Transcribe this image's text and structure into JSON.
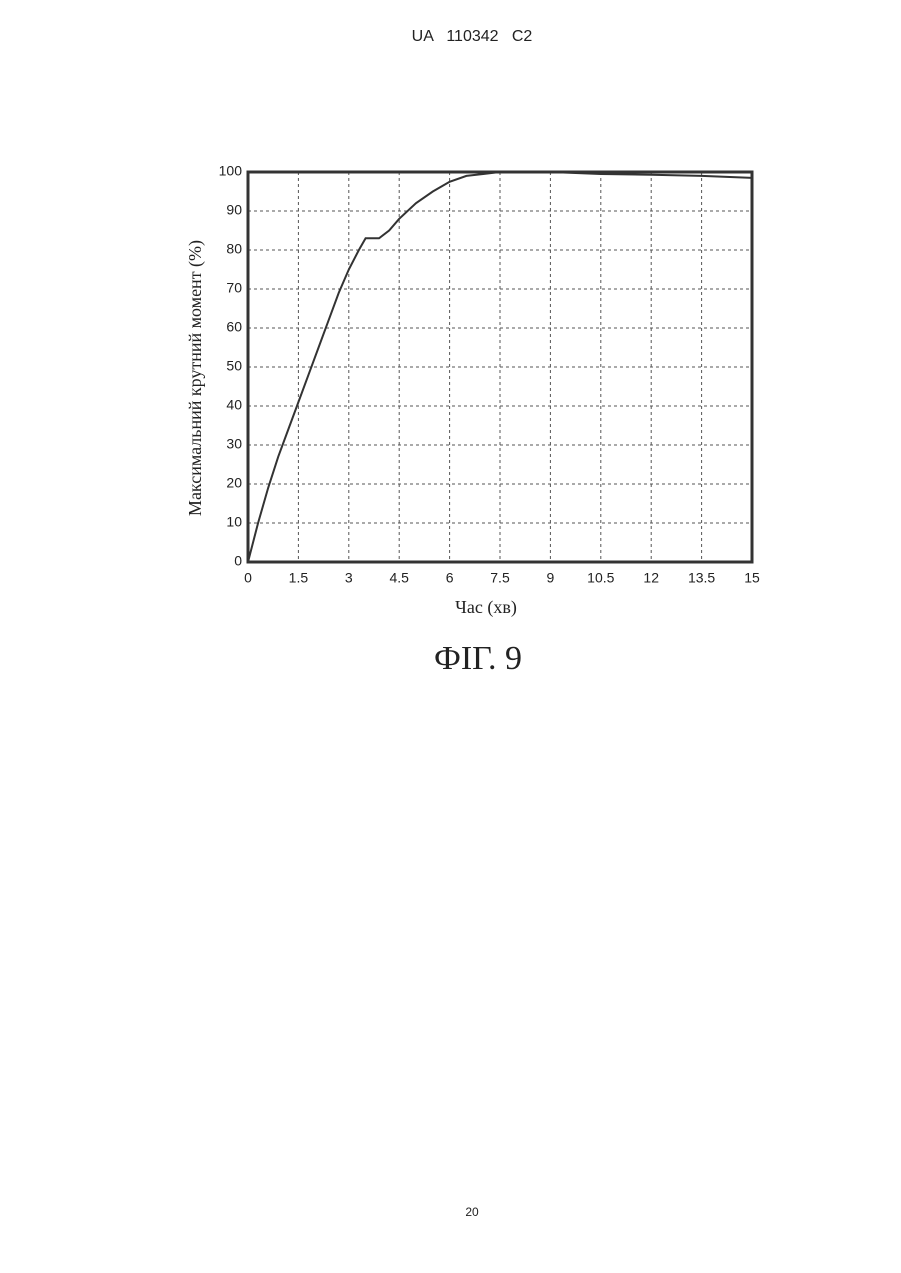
{
  "header": "UA   110342   C2",
  "chart_data": {
    "type": "line",
    "xlabel": "Час (хв)",
    "ylabel": "Максимальний крутний момент (%)",
    "x": [
      0,
      0.3,
      0.6,
      0.9,
      1.2,
      1.5,
      1.8,
      2.1,
      2.4,
      2.7,
      3.0,
      3.3,
      3.5,
      3.9,
      4.2,
      4.5,
      5.0,
      5.5,
      6.0,
      6.5,
      7.0,
      7.5,
      9,
      10.5,
      12,
      13.5,
      15
    ],
    "values": [
      0,
      10,
      19,
      27,
      34,
      41,
      48,
      55,
      62,
      69,
      75,
      80,
      83,
      83,
      85,
      88,
      92,
      95,
      97.5,
      99,
      99.5,
      100,
      100,
      99.5,
      99.3,
      99,
      98.5
    ],
    "color": "#333333",
    "xlim": [
      0,
      15
    ],
    "xticks": [
      0,
      1.5,
      3,
      4.5,
      6,
      7.5,
      9,
      10.5,
      12,
      13.5,
      15
    ],
    "ylim": [
      0,
      100
    ],
    "yticks": [
      0,
      10,
      20,
      30,
      40,
      50,
      60,
      70,
      80,
      90,
      100
    ],
    "grid": true
  },
  "caption": "ФІГ. 9",
  "page_number": "20"
}
